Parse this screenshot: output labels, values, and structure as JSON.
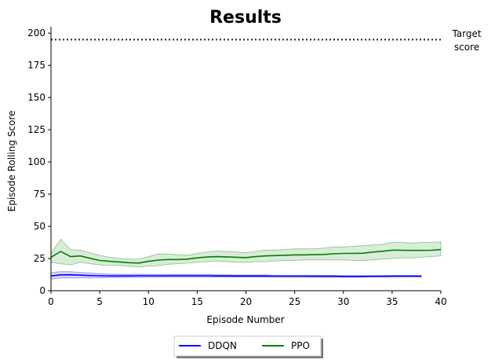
{
  "chart_data": {
    "type": "line",
    "title": "Results",
    "xlabel": "Episode Number",
    "ylabel": "Episode Rolling Score",
    "xlim": [
      0,
      40
    ],
    "ylim": [
      0,
      205
    ],
    "xticks": [
      0,
      5,
      10,
      15,
      20,
      25,
      30,
      35,
      40
    ],
    "yticks": [
      0,
      25,
      50,
      75,
      100,
      125,
      150,
      175,
      200
    ],
    "grid": false,
    "legend_position": "bottom-center",
    "annotation": {
      "text_line1": "Target",
      "text_line2": "score",
      "y": 195
    },
    "series": [
      {
        "name": "DDQN",
        "color": "#0000ff",
        "x": [
          0,
          1,
          2,
          3,
          4,
          5,
          6,
          7,
          8,
          9,
          10,
          11,
          12,
          13,
          14,
          15,
          16,
          17,
          18,
          19,
          20,
          21,
          22,
          23,
          24,
          25,
          26,
          27,
          28,
          29,
          30,
          31,
          32,
          33,
          34,
          35,
          36,
          37,
          38
        ],
        "values": [
          11.5,
          12.3,
          12.4,
          12.1,
          11.8,
          11.6,
          11.5,
          11.5,
          11.5,
          11.6,
          11.6,
          11.6,
          11.6,
          11.6,
          11.6,
          11.6,
          11.6,
          11.5,
          11.5,
          11.4,
          11.4,
          11.4,
          11.4,
          11.3,
          11.3,
          11.3,
          11.3,
          11.2,
          11.2,
          11.2,
          11.1,
          11.1,
          11.1,
          11.2,
          11.2,
          11.3,
          11.3,
          11.3,
          11.3
        ],
        "lower": [
          9.0,
          9.8,
          10.0,
          10.0,
          9.9,
          10.0,
          10.1,
          10.2,
          10.3,
          10.4,
          10.5,
          10.5,
          10.6,
          10.6,
          10.6,
          10.6,
          10.6,
          10.6,
          10.6,
          10.6,
          10.6,
          10.6,
          10.6,
          10.6,
          10.6,
          10.6,
          10.6,
          10.5,
          10.5,
          10.5,
          10.5,
          10.5,
          10.5,
          10.6,
          10.6,
          10.7,
          10.7,
          10.7,
          10.7
        ],
        "upper": [
          14.0,
          14.8,
          14.8,
          14.2,
          13.7,
          13.2,
          12.9,
          12.8,
          12.7,
          12.8,
          12.7,
          12.7,
          12.6,
          12.6,
          12.6,
          12.6,
          12.6,
          12.4,
          12.4,
          12.2,
          12.2,
          12.2,
          12.2,
          12.0,
          12.0,
          12.0,
          12.0,
          11.9,
          11.9,
          11.9,
          11.7,
          11.7,
          11.7,
          11.8,
          11.8,
          11.9,
          11.9,
          11.9,
          11.9
        ]
      },
      {
        "name": "PPO",
        "color": "#008000",
        "x": [
          0,
          1,
          2,
          3,
          4,
          5,
          6,
          7,
          8,
          9,
          10,
          11,
          12,
          13,
          14,
          15,
          16,
          17,
          18,
          19,
          20,
          21,
          22,
          23,
          24,
          25,
          26,
          27,
          28,
          29,
          30,
          31,
          32,
          33,
          34,
          35,
          36,
          37,
          38,
          39,
          40
        ],
        "values": [
          26,
          30.5,
          26.5,
          27,
          25.2,
          23.5,
          22.8,
          22.3,
          21.8,
          21.5,
          22.8,
          23.8,
          24.2,
          24.2,
          24.5,
          25.5,
          26.2,
          26.5,
          26.3,
          26,
          25.7,
          26.5,
          27,
          27.3,
          27.5,
          27.8,
          27.8,
          28,
          28.2,
          28.7,
          29,
          29,
          29.1,
          30,
          30.6,
          31.5,
          31.4,
          31.3,
          31.3,
          31.4,
          32
        ]
      }
    ],
    "ppo_band": {
      "lower": [
        22,
        21,
        20,
        22,
        21,
        20,
        19.5,
        19.5,
        19,
        18.5,
        19,
        19.5,
        20.5,
        21,
        21.5,
        22,
        22.5,
        23,
        22.5,
        22,
        22,
        22.5,
        22.5,
        23,
        23.5,
        23.5,
        24,
        24,
        24,
        24,
        24,
        23.5,
        23.5,
        24,
        24.5,
        25,
        25.5,
        25.5,
        26,
        26.5,
        27
      ],
      "upper": [
        29,
        40,
        32,
        31.5,
        29.5,
        27.5,
        26,
        25,
        24.5,
        24.5,
        26.5,
        28.5,
        28.5,
        28,
        27.5,
        29,
        30,
        31,
        30.5,
        30,
        29.5,
        30.5,
        31.5,
        31.5,
        32,
        32.5,
        32.5,
        32.5,
        33,
        34,
        34,
        34.5,
        35,
        35.5,
        36,
        37.5,
        37.5,
        37,
        37.5,
        37.5,
        38
      ]
    }
  }
}
